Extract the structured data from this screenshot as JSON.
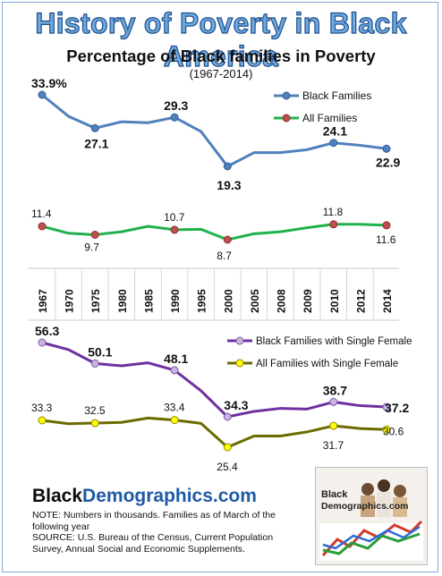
{
  "title": "History of Poverty in Black America",
  "subtitle": "Percentage of Black families in Poverty",
  "years_range": "(1967-2014)",
  "colors": {
    "black_families": "#4f81bd",
    "all_families": "#21b14c",
    "single_female_black": "#7030a0",
    "single_female_all": "#6b6b00"
  },
  "chart_data": [
    {
      "type": "line",
      "categories": [
        "1967",
        "1970",
        "1975",
        "1980",
        "1985",
        "1990",
        "1995",
        "2000",
        "2005",
        "2008",
        "2009",
        "2010",
        "2012",
        "2014"
      ],
      "series": [
        {
          "name": "Black Families",
          "values": [
            33.9,
            29.5,
            27.1,
            28.4,
            28.2,
            29.3,
            26.4,
            19.3,
            22.1,
            22.1,
            22.7,
            24.1,
            23.6,
            22.9
          ]
        },
        {
          "name": "All Families",
          "values": [
            11.4,
            10.0,
            9.7,
            10.3,
            11.4,
            10.7,
            10.8,
            8.7,
            9.9,
            10.3,
            11.1,
            11.8,
            11.8,
            11.6
          ]
        }
      ],
      "data_labels": [
        {
          "series": 0,
          "index": 0,
          "text": "33.9%"
        },
        {
          "series": 0,
          "index": 2,
          "text": "27.1"
        },
        {
          "series": 0,
          "index": 5,
          "text": "29.3"
        },
        {
          "series": 0,
          "index": 7,
          "text": "19.3"
        },
        {
          "series": 0,
          "index": 11,
          "text": "24.1"
        },
        {
          "series": 0,
          "index": 13,
          "text": "22.9"
        },
        {
          "series": 1,
          "index": 0,
          "text": "11.4"
        },
        {
          "series": 1,
          "index": 2,
          "text": "9.7"
        },
        {
          "series": 1,
          "index": 5,
          "text": "10.7"
        },
        {
          "series": 1,
          "index": 7,
          "text": "8.7"
        },
        {
          "series": 1,
          "index": 11,
          "text": "11.8"
        },
        {
          "series": 1,
          "index": 13,
          "text": "11.6"
        }
      ],
      "legend": "top-right",
      "grid": false
    },
    {
      "type": "line",
      "categories": [
        "1967",
        "1970",
        "1975",
        "1980",
        "1985",
        "1990",
        "1995",
        "2000",
        "2005",
        "2008",
        "2009",
        "2010",
        "2012",
        "2014"
      ],
      "series": [
        {
          "name": "Black Families with Single Female",
          "values": [
            56.3,
            54.2,
            50.1,
            49.4,
            50.3,
            48.1,
            42.0,
            34.3,
            35.9,
            36.8,
            36.6,
            38.7,
            37.6,
            37.2
          ]
        },
        {
          "name": "All Families with Single Female",
          "values": [
            33.3,
            32.3,
            32.5,
            32.7,
            34.0,
            33.4,
            32.4,
            25.4,
            28.7,
            28.7,
            29.9,
            31.7,
            30.9,
            30.6
          ]
        }
      ],
      "data_labels": [
        {
          "series": 0,
          "index": 0,
          "text": "56.3"
        },
        {
          "series": 0,
          "index": 2,
          "text": "50.1"
        },
        {
          "series": 0,
          "index": 5,
          "text": "48.1"
        },
        {
          "series": 0,
          "index": 7,
          "text": "34.3"
        },
        {
          "series": 0,
          "index": 11,
          "text": "38.7"
        },
        {
          "series": 0,
          "index": 13,
          "text": "37.2"
        },
        {
          "series": 1,
          "index": 0,
          "text": "33.3"
        },
        {
          "series": 1,
          "index": 2,
          "text": "32.5"
        },
        {
          "series": 1,
          "index": 5,
          "text": "33.4"
        },
        {
          "series": 1,
          "index": 7,
          "text": "25.4"
        },
        {
          "series": 1,
          "index": 11,
          "text": "31.7"
        },
        {
          "series": 1,
          "index": 13,
          "text": "30.6"
        }
      ],
      "legend": "top-right",
      "grid": false
    }
  ],
  "brand": {
    "black": "Black",
    "demographics": "Demographics.com"
  },
  "note": "NOTE:  Numbers in thousands. Families  as of March of the following year\nSOURCE:  U.S. Bureau of the Census, Current Population Survey, Annual Social and Economic  Supplements.",
  "logo": {
    "line1": "Black",
    "line2": "Demographics.com"
  }
}
